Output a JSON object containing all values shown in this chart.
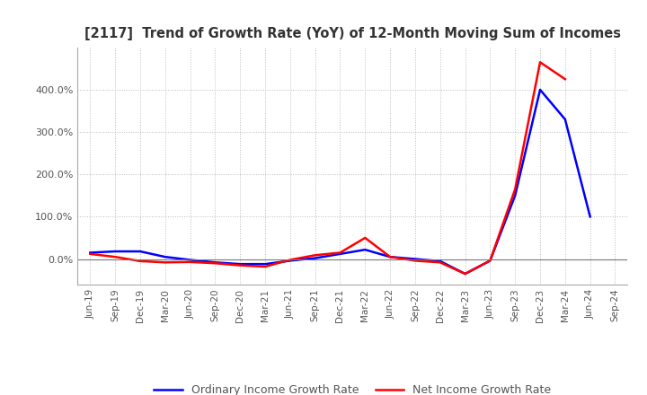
{
  "title": "[2117]  Trend of Growth Rate (YoY) of 12-Month Moving Sum of Incomes",
  "x_labels": [
    "Jun-19",
    "Sep-19",
    "Dec-19",
    "Mar-20",
    "Jun-20",
    "Sep-20",
    "Dec-20",
    "Mar-21",
    "Jun-21",
    "Sep-21",
    "Dec-21",
    "Mar-22",
    "Jun-22",
    "Sep-22",
    "Dec-22",
    "Mar-23",
    "Jun-23",
    "Sep-23",
    "Dec-23",
    "Mar-24",
    "Jun-24",
    "Sep-24"
  ],
  "ordinary_income": [
    15.0,
    18.0,
    18.0,
    5.0,
    -2.0,
    -8.0,
    -12.0,
    -12.0,
    -4.0,
    2.0,
    12.0,
    22.0,
    5.0,
    0.0,
    -5.0,
    -35.0,
    -4.0,
    150.0,
    400.0,
    330.0,
    100.0,
    null
  ],
  "net_income": [
    12.0,
    5.0,
    -5.0,
    -8.0,
    -7.0,
    -10.0,
    -15.0,
    -18.0,
    -2.0,
    9.0,
    15.0,
    50.0,
    5.0,
    -4.0,
    -8.0,
    -35.0,
    -4.0,
    165.0,
    465.0,
    425.0,
    null,
    null
  ],
  "legend_ordinary": "Ordinary Income Growth Rate",
  "legend_net": "Net Income Growth Rate",
  "ordinary_color": "#0000FF",
  "net_color": "#FF0000",
  "ylim_min": -60.0,
  "ylim_max": 500.0,
  "yticks": [
    0.0,
    100.0,
    200.0,
    300.0,
    400.0
  ],
  "background_color": "#FFFFFF",
  "grid_color": "#AAAAAA",
  "title_color": "#333333"
}
